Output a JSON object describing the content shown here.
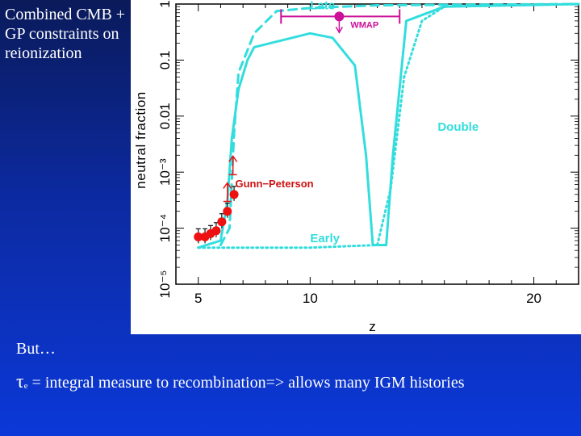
{
  "slide": {
    "title": "Combined CMB + GP constraints on reionization",
    "caption_but": "But…",
    "tau_symbol": "τ",
    "tau_subscript": "e",
    "tau_text": " = integral measure to recombination=> allows many IGM histories"
  },
  "colors": {
    "cyan": "#33dddd",
    "magenta": "#cc1199",
    "red": "#ee1111",
    "background_top": "#0a1a5a",
    "background_bottom": "#0b38d8"
  },
  "chart_data": {
    "type": "line",
    "xlabel": "z",
    "ylabel": "neutral fraction",
    "xlim": [
      4.0,
      22.0
    ],
    "ylim": [
      1e-05,
      1
    ],
    "yscale": "log",
    "x_ticks": [
      5,
      10,
      20
    ],
    "x_tick_labels": [
      "5",
      "10",
      "20"
    ],
    "y_ticks": [
      1e-05,
      0.0001,
      0.001,
      0.01,
      0.1,
      1
    ],
    "y_tick_labels": [
      "10⁻⁵",
      "10⁻⁴",
      "10⁻³",
      "0.01",
      "0.1",
      "1"
    ],
    "series": [
      {
        "name": "Late",
        "style": "dashed",
        "points": [
          [
            6.0,
            5e-05
          ],
          [
            6.4,
            0.0001
          ],
          [
            6.6,
            0.005
          ],
          [
            6.8,
            0.06
          ],
          [
            7.2,
            0.15
          ],
          [
            7.5,
            0.3
          ],
          [
            8.5,
            0.75
          ],
          [
            10,
            0.85
          ],
          [
            13,
            0.95
          ],
          [
            22,
            1.0
          ]
        ]
      },
      {
        "name": "Double",
        "style": "solid",
        "points": [
          [
            5.0,
            4.5e-05
          ],
          [
            6.0,
            6e-05
          ],
          [
            6.3,
            0.0003
          ],
          [
            6.5,
            0.004
          ],
          [
            6.8,
            0.03
          ],
          [
            7.2,
            0.1
          ],
          [
            7.5,
            0.17
          ],
          [
            10.0,
            0.3
          ],
          [
            11.0,
            0.25
          ],
          [
            12.0,
            0.08
          ],
          [
            12.5,
            0.002
          ],
          [
            12.8,
            5e-05
          ],
          [
            13.4,
            5e-05
          ],
          [
            13.7,
            0.002
          ],
          [
            14.3,
            0.5
          ],
          [
            16.0,
            0.9
          ],
          [
            22,
            1.0
          ]
        ]
      },
      {
        "name": "Early",
        "style": "dotted",
        "points": [
          [
            5.0,
            4.5e-05
          ],
          [
            10.0,
            4.5e-05
          ],
          [
            13.0,
            5e-05
          ],
          [
            13.6,
            0.0005
          ],
          [
            14.2,
            0.05
          ],
          [
            15.0,
            0.5
          ],
          [
            16.0,
            0.9
          ],
          [
            22,
            1.0
          ]
        ]
      }
    ],
    "gunn_peterson_label": "Gunn−Peterson",
    "gunn_peterson_points": [
      {
        "z": 5.0,
        "x_HI": 7e-05
      },
      {
        "z": 5.3,
        "x_HI": 7e-05
      },
      {
        "z": 5.55,
        "x_HI": 8e-05
      },
      {
        "z": 5.8,
        "x_HI": 9e-05
      },
      {
        "z": 6.05,
        "x_HI": 0.00013
      },
      {
        "z": 6.3,
        "x_HI": 0.0002
      },
      {
        "z": 6.6,
        "x_HI": 0.0004
      }
    ],
    "gunn_peterson_lower_limits": [
      {
        "z": 6.3,
        "x_HI": 0.0003
      },
      {
        "z": 6.55,
        "x_HI": 0.0009
      }
    ],
    "wmap_label": "WMAP",
    "wmap_point": {
      "z": 11.3,
      "x_HI": 0.6,
      "z_err": [
        8.7,
        14.0
      ]
    }
  }
}
